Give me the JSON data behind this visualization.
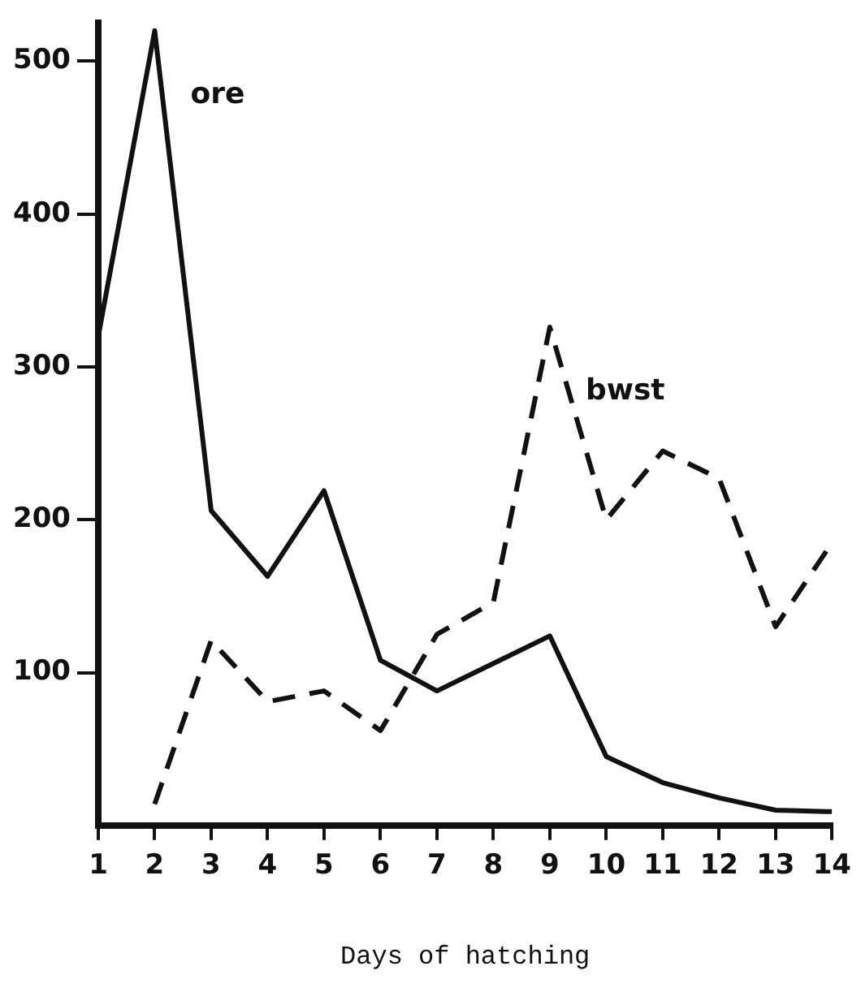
{
  "chart_data": {
    "type": "line",
    "xlabel": "Days of hatching",
    "x": [
      1,
      2,
      3,
      4,
      5,
      6,
      7,
      8,
      9,
      10,
      11,
      12,
      13,
      14
    ],
    "xlim": [
      1,
      14
    ],
    "xticks": [
      1,
      2,
      3,
      4,
      5,
      6,
      7,
      8,
      9,
      10,
      11,
      12,
      13,
      14
    ],
    "ylim": [
      0,
      525
    ],
    "yticks": [
      100,
      200,
      300,
      400,
      500
    ],
    "series": [
      {
        "name": "ore",
        "color": "#111111",
        "line_style": "solid",
        "values": [
          320,
          520,
          206,
          163,
          219,
          108,
          88,
          106,
          124,
          45,
          28,
          18,
          10,
          9
        ]
      },
      {
        "name": "bwst",
        "color": "#111111",
        "line_style": "dashed",
        "values": [
          null,
          14,
          121,
          81,
          88,
          62,
          125,
          146,
          326,
          200,
          245,
          227,
          130,
          185
        ]
      }
    ],
    "grid": false,
    "legend": false,
    "marker": "none"
  }
}
